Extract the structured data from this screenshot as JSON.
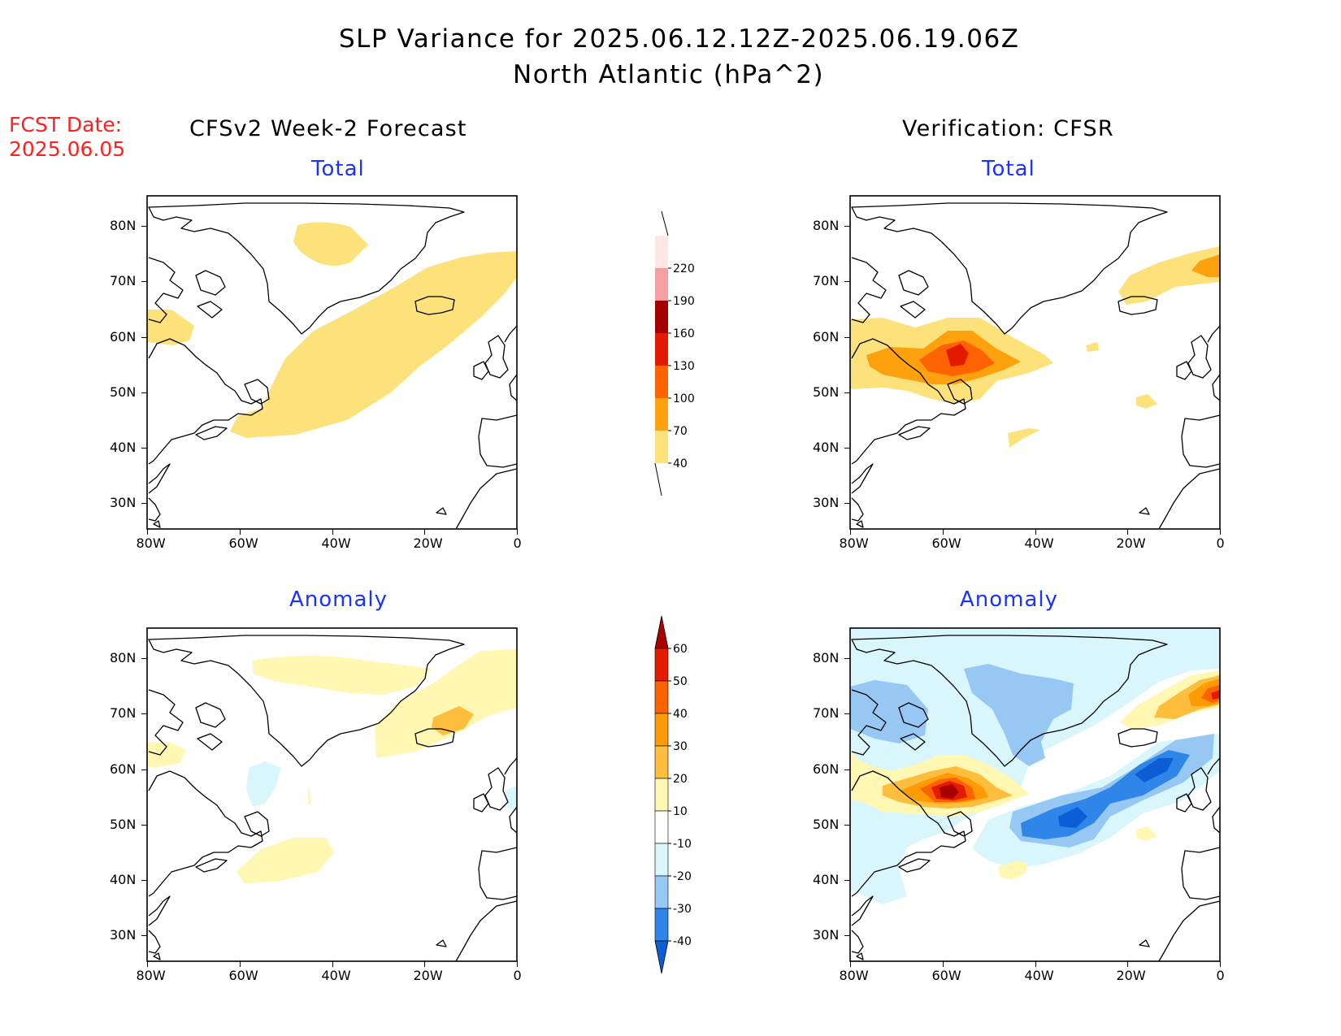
{
  "header": {
    "title_line1": "SLP Variance for 2025.06.12.12Z-2025.06.19.06Z",
    "title_line2": "North Atlantic (hPa^2)"
  },
  "fcst_date": {
    "label": "FCST Date:",
    "value": "2025.06.05"
  },
  "columns": {
    "left_title": "CFSv2 Week-2 Forecast",
    "right_title": "Verification: CFSR"
  },
  "panels": [
    {
      "id": "forecast-total",
      "subtitle": "Total"
    },
    {
      "id": "verification-total",
      "subtitle": "Total"
    },
    {
      "id": "forecast-anomaly",
      "subtitle": "Anomaly"
    },
    {
      "id": "verification-anomaly",
      "subtitle": "Anomaly"
    }
  ],
  "axes": {
    "lat_labels": [
      "80N",
      "70N",
      "60N",
      "50N",
      "40N",
      "30N"
    ],
    "lon_labels": [
      "80W",
      "60W",
      "40W",
      "20W",
      "0"
    ]
  },
  "colorbars": {
    "total": {
      "levels": [
        "40",
        "70",
        "100",
        "130",
        "160",
        "190",
        "220"
      ],
      "colors": [
        "#fde27c",
        "#fda20e",
        "#fd6300",
        "#e31a00",
        "#a50000",
        "#f4a0a0",
        "#fde6e6"
      ]
    },
    "anomaly": {
      "levels": [
        "-40",
        "-30",
        "-20",
        "-10",
        "10",
        "20",
        "30",
        "40",
        "50",
        "60"
      ],
      "colors": [
        "#0d5ed6",
        "#2f86e8",
        "#97c8f4",
        "#d8f6fc",
        "#ffffff",
        "#fff7b2",
        "#fdbe3e",
        "#fd9a04",
        "#fd6200",
        "#e31c00",
        "#a80000"
      ]
    }
  },
  "colors": {
    "fcst_date": "#ff2020",
    "subtitle": "#1a33ff"
  }
}
